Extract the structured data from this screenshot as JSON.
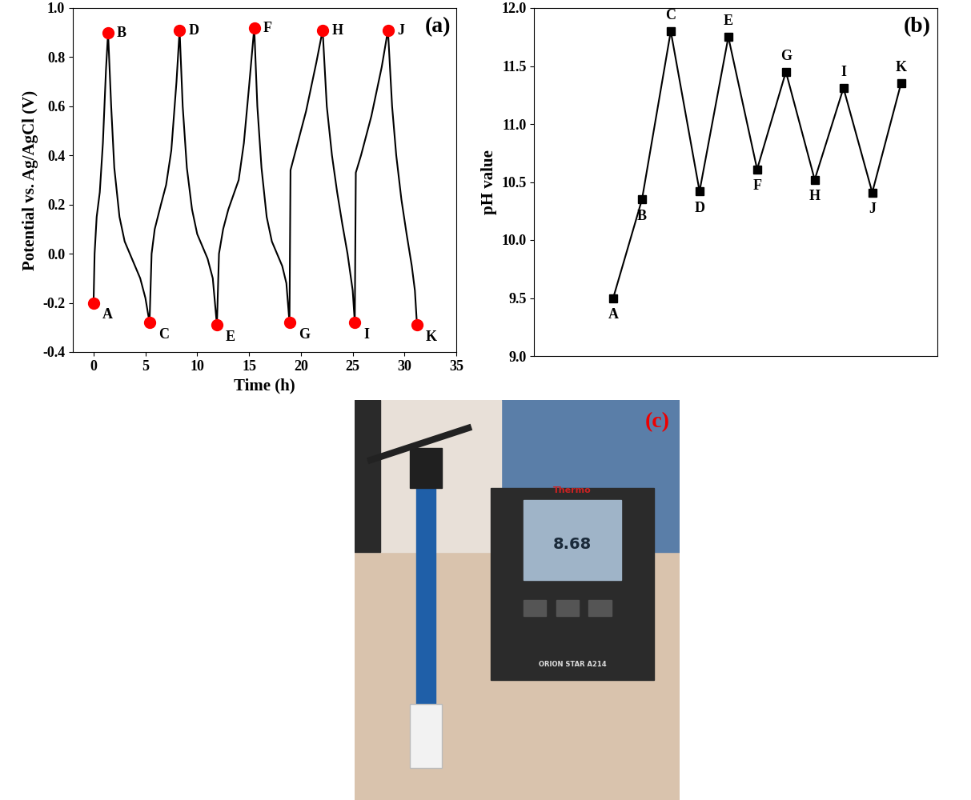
{
  "chart_data": [
    {
      "type": "line",
      "title": "(a)",
      "x_label": "Time (h)",
      "y_label": "Potential vs. Ag/AgCl (V)",
      "x": [
        0,
        0.1,
        0.3,
        0.6,
        0.9,
        1.2,
        1.4,
        1.7,
        2.0,
        2.5,
        3,
        3.5,
        4,
        4.5,
        5,
        5.4,
        5.6,
        5.9,
        6.5,
        7,
        7.5,
        8,
        8.3,
        8.6,
        9,
        9.5,
        10,
        10.5,
        11,
        11.5,
        11.9,
        12.1,
        12.5,
        13,
        13.5,
        14,
        14.5,
        15,
        15.5,
        15.8,
        16.2,
        16.7,
        17.2,
        17.7,
        18.2,
        18.6,
        18.9,
        19.0,
        19.5,
        20,
        20.5,
        21,
        21.5,
        22.1,
        22.5,
        23,
        23.5,
        24,
        24.5,
        25,
        25.2,
        25.3,
        25.8,
        26.3,
        26.8,
        27.3,
        27.8,
        28.4,
        28.8,
        29.2,
        29.7,
        30.2,
        30.7,
        31.0,
        31.2
      ],
      "values": [
        -0.2,
        0.0,
        0.15,
        0.25,
        0.45,
        0.75,
        0.9,
        0.6,
        0.35,
        0.15,
        0.05,
        0.0,
        -0.05,
        -0.1,
        -0.18,
        -0.28,
        0.0,
        0.1,
        0.2,
        0.28,
        0.42,
        0.7,
        0.91,
        0.6,
        0.35,
        0.18,
        0.08,
        0.03,
        -0.02,
        -0.1,
        -0.29,
        0.0,
        0.1,
        0.18,
        0.24,
        0.3,
        0.45,
        0.68,
        0.92,
        0.6,
        0.35,
        0.15,
        0.05,
        0.0,
        -0.05,
        -0.12,
        -0.28,
        0.34,
        0.42,
        0.5,
        0.58,
        0.68,
        0.78,
        0.91,
        0.6,
        0.4,
        0.25,
        0.12,
        0.0,
        -0.15,
        -0.28,
        0.33,
        0.4,
        0.48,
        0.56,
        0.66,
        0.76,
        0.91,
        0.6,
        0.4,
        0.22,
        0.08,
        -0.05,
        -0.15,
        -0.29
      ],
      "color": "#000000",
      "annotations": [
        {
          "text": "A",
          "x": 0,
          "y": -0.2,
          "color": "#ff0000"
        },
        {
          "text": "B",
          "x": 1.4,
          "y": 0.9,
          "color": "#ff0000"
        },
        {
          "text": "C",
          "x": 5.4,
          "y": -0.28,
          "color": "#ff0000"
        },
        {
          "text": "D",
          "x": 8.3,
          "y": 0.91,
          "color": "#ff0000"
        },
        {
          "text": "E",
          "x": 11.9,
          "y": -0.29,
          "color": "#ff0000"
        },
        {
          "text": "F",
          "x": 15.5,
          "y": 0.92,
          "color": "#ff0000"
        },
        {
          "text": "G",
          "x": 18.9,
          "y": -0.28,
          "color": "#ff0000"
        },
        {
          "text": "H",
          "x": 22.1,
          "y": 0.91,
          "color": "#ff0000"
        },
        {
          "text": "I",
          "x": 25.2,
          "y": -0.28,
          "color": "#ff0000"
        },
        {
          "text": "J",
          "x": 28.4,
          "y": 0.91,
          "color": "#ff0000"
        },
        {
          "text": "K",
          "x": 31.2,
          "y": -0.29,
          "color": "#ff0000"
        }
      ],
      "xlim": [
        -2,
        35
      ],
      "xticks": [
        0,
        5,
        10,
        15,
        20,
        25,
        30,
        35
      ],
      "ylim": [
        -0.4,
        1.0
      ],
      "yticks": [
        -0.4,
        -0.2,
        0.0,
        0.2,
        0.4,
        0.6,
        0.8,
        1.0
      ]
    },
    {
      "type": "line",
      "title": "(b)",
      "y_label": "pH value",
      "categories": [
        "A",
        "B",
        "C",
        "D",
        "E",
        "F",
        "G",
        "H",
        "I",
        "J",
        "K"
      ],
      "values": [
        9.5,
        10.35,
        11.8,
        10.42,
        11.75,
        10.61,
        11.45,
        10.52,
        11.31,
        10.41,
        11.35
      ],
      "color": "#000000",
      "marker": "square",
      "tick_labels": "y",
      "ylim": [
        9.0,
        12.0
      ],
      "yticks": [
        9.0,
        9.5,
        10.0,
        10.5,
        11.0,
        11.5,
        12.0
      ]
    }
  ],
  "photo": {
    "label": "(c)",
    "display": "8.68",
    "brand": "Thermo",
    "model": "ORION STAR A214"
  }
}
